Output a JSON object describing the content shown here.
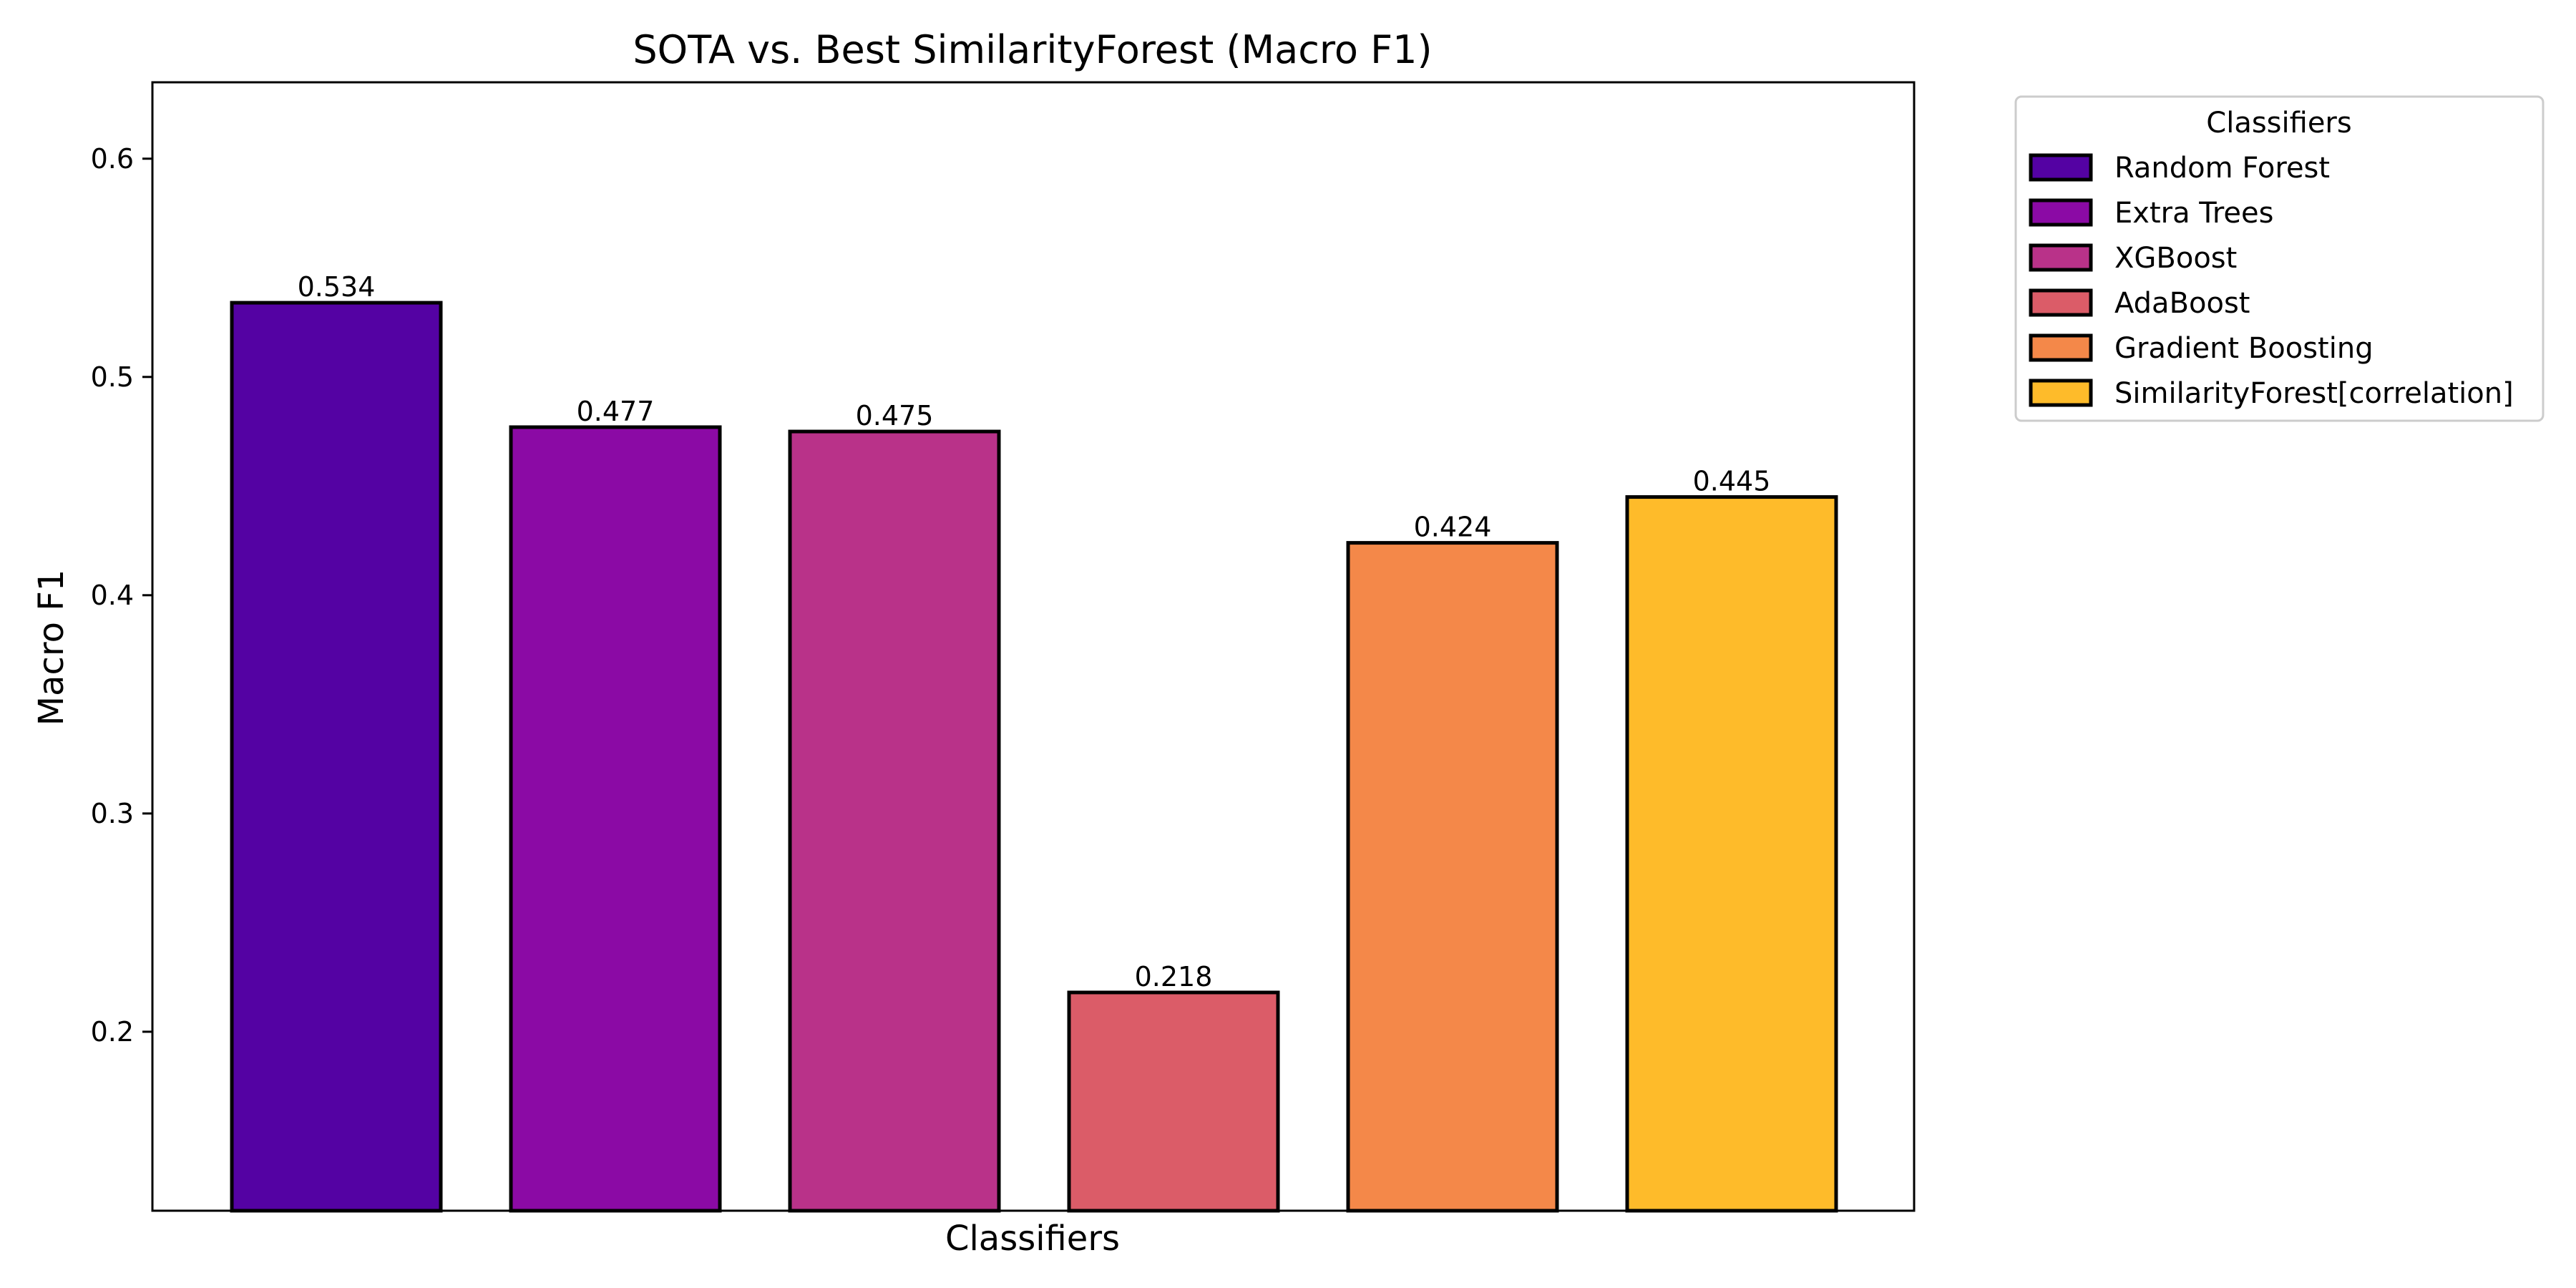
{
  "chart_data": {
    "type": "bar",
    "title": "SOTA vs. Best SimilarityForest (Macro F1)",
    "xlabel": "Classifiers",
    "ylabel": "Macro F1",
    "ylim": [
      0.118,
      0.635
    ],
    "yticks": [
      0.2,
      0.3,
      0.4,
      0.5,
      0.6
    ],
    "ytick_labels": [
      "0.2",
      "0.3",
      "0.4",
      "0.5",
      "0.6"
    ],
    "categories": [
      "Random Forest",
      "Extra Trees",
      "XGBoost",
      "AdaBoost",
      "Gradient Boosting",
      "SimilarityForest[correlation]"
    ],
    "values": [
      0.534,
      0.477,
      0.475,
      0.218,
      0.424,
      0.445
    ],
    "value_labels": [
      "0.534",
      "0.477",
      "0.475",
      "0.218",
      "0.424",
      "0.445"
    ],
    "colors": [
      "#5402a3",
      "#8b0aa5",
      "#b93289",
      "#db5c68",
      "#f48849",
      "#febb2a"
    ],
    "legend": {
      "title": "Classifiers",
      "position": "outside-right-top",
      "entries": [
        "Random Forest",
        "Extra Trees",
        "XGBoost",
        "AdaBoost",
        "Gradient Boosting",
        "SimilarityForest[correlation]"
      ]
    },
    "grid": false
  }
}
